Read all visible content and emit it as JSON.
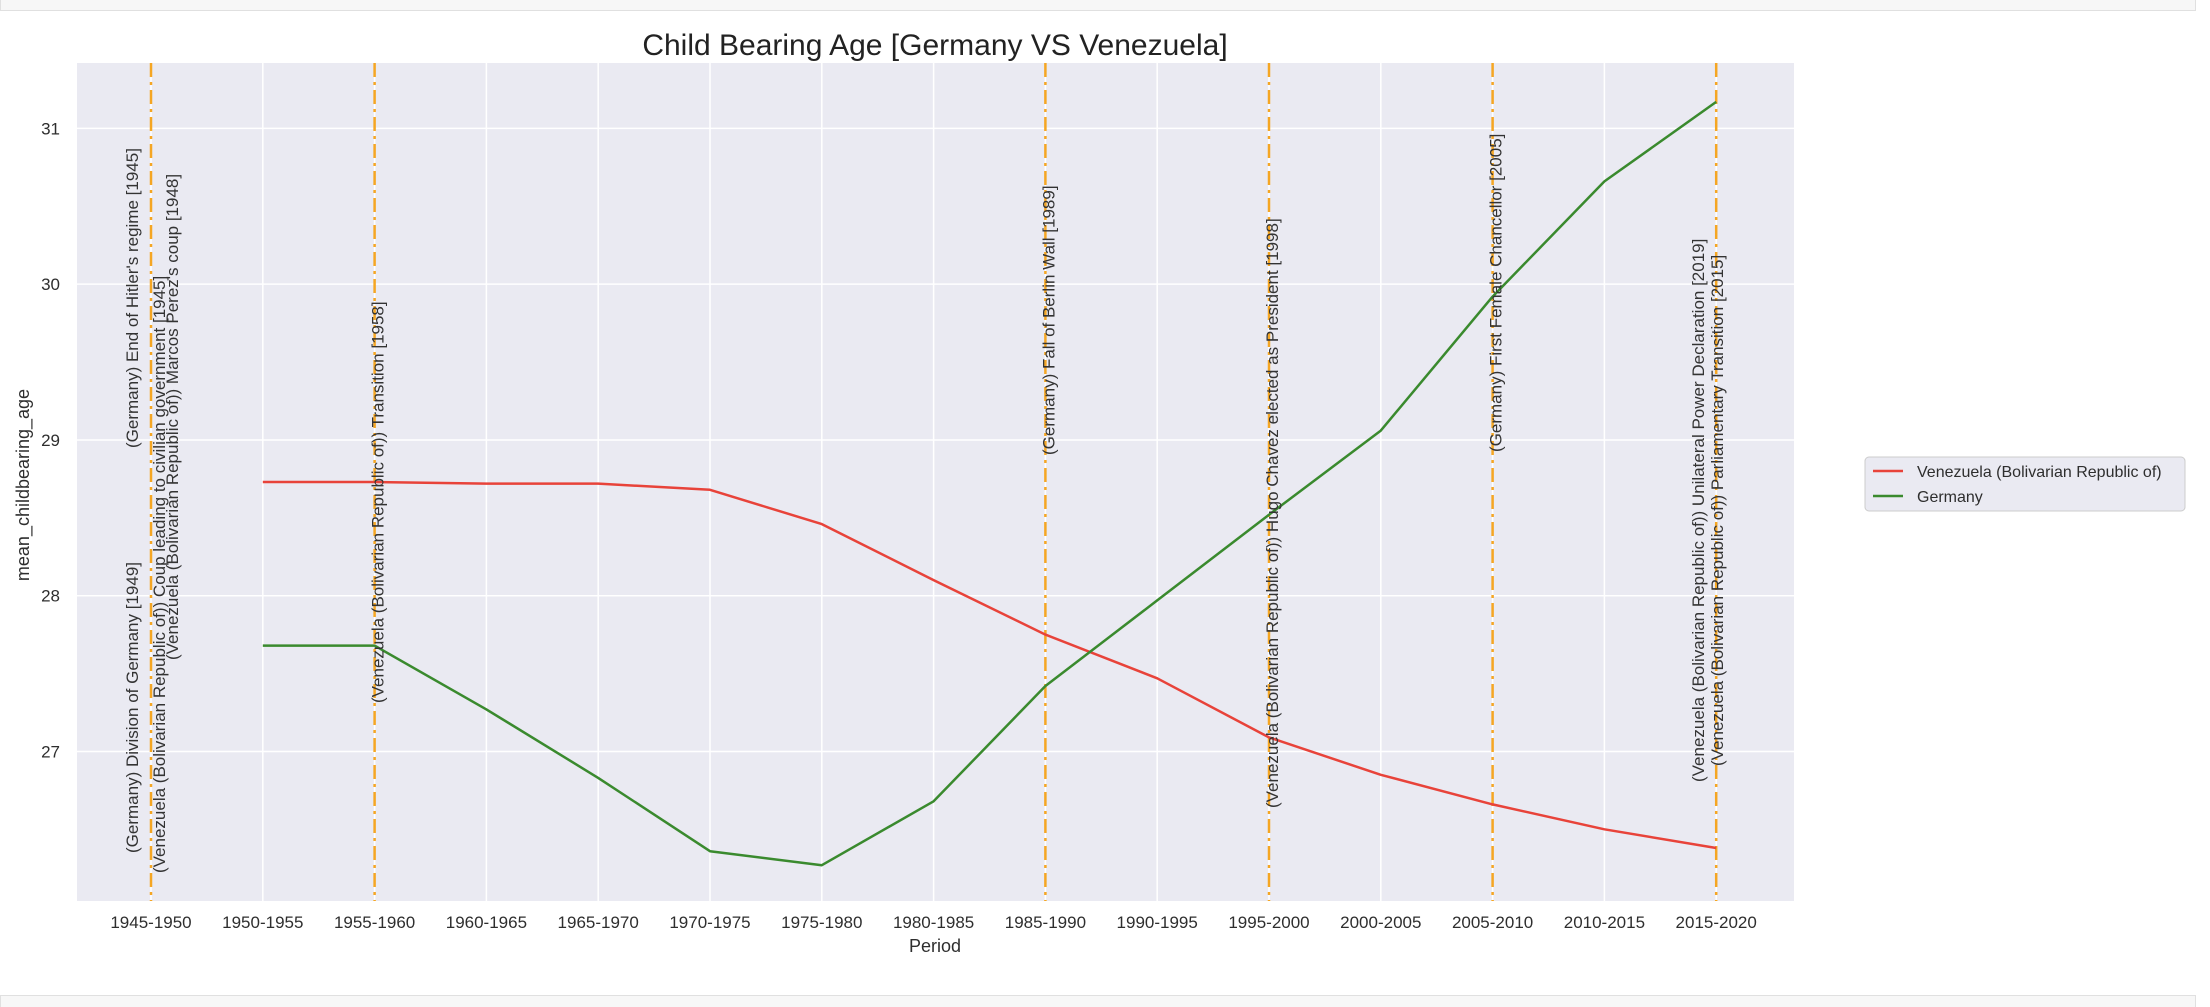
{
  "chart_data": {
    "type": "line",
    "title": "Child Bearing Age [Germany VS Venezuela]",
    "xlabel": "Period",
    "ylabel": "mean_childbearing_age",
    "categories": [
      "1945-1950",
      "1950-1955",
      "1955-1960",
      "1960-1965",
      "1965-1970",
      "1970-1975",
      "1975-1980",
      "1980-1985",
      "1985-1990",
      "1990-1995",
      "1995-2000",
      "2000-2005",
      "2005-2010",
      "2010-2015",
      "2015-2020"
    ],
    "ylim": [
      26.04,
      31.42
    ],
    "yticks": [
      27,
      28,
      29,
      30,
      31
    ],
    "grid": true,
    "legend_position": "right",
    "series": [
      {
        "name": "Venezuela (Bolivarian Republic of)",
        "color": "#e8433a",
        "values": [
          null,
          28.73,
          28.73,
          28.72,
          28.72,
          28.68,
          28.46,
          28.1,
          27.75,
          27.47,
          27.09,
          26.85,
          26.66,
          26.5,
          26.38
        ]
      },
      {
        "name": "Germany",
        "color": "#3a8a2e",
        "values": [
          null,
          27.68,
          27.68,
          27.27,
          26.83,
          26.36,
          26.27,
          26.68,
          27.42,
          27.97,
          28.52,
          29.06,
          29.92,
          30.66,
          31.17
        ]
      }
    ],
    "event_line_color": "#f5a623",
    "events": [
      {
        "category": "1945-1950",
        "labels": [
          "(Germany) End of Hitler's regime [1945]",
          "(Germany) Division of Germany [1949]",
          "(Venezuela (Bolivarian Republic of)) Coup leading to civilian government [1945]",
          "(Venezuela (Bolivarian Republic of)) Marcos Perez's coup [1948]"
        ]
      },
      {
        "category": "1955-1960",
        "labels": [
          "(Venezuela (Bolivarian Republic of)) Transition [1958]"
        ]
      },
      {
        "category": "1985-1990",
        "labels": [
          "(Germany) Fall of Berlin Wall [1989]"
        ]
      },
      {
        "category": "1995-2000",
        "labels": [
          "(Venezuela (Bolivarian Republic of)) Hugo Chavez elected as President [1998]"
        ]
      },
      {
        "category": "2005-2010",
        "labels": [
          "(Germany) First Female Chancellor [2005]"
        ]
      },
      {
        "category": "2015-2020",
        "labels": [
          "(Venezuela (Bolivarian Republic of)) Unilateral Power Declaration [2019]",
          "(Venezuela (Bolivarian Republic of)) Parliamentary Transition [2015]"
        ]
      }
    ]
  }
}
